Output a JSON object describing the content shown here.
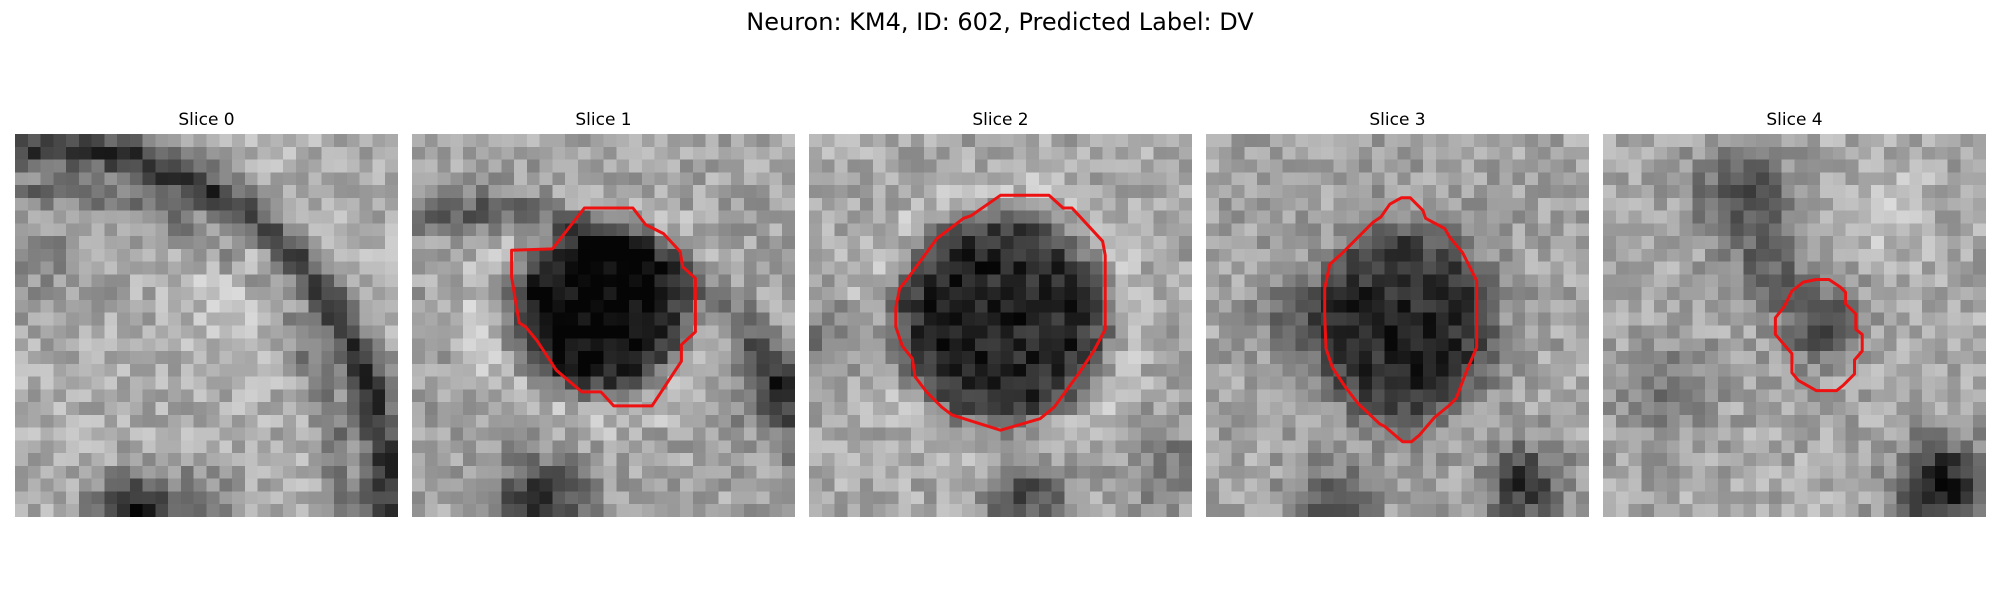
{
  "figure": {
    "title": "Neuron: KM4, ID: 602, Predicted Label: DV"
  },
  "colors": {
    "contour": "#ee1111",
    "image_colormap": "grayscale",
    "background": "#ffffff"
  },
  "panels": [
    {
      "title": "Slice 0",
      "has_contour": false
    },
    {
      "title": "Slice 1",
      "has_contour": true
    },
    {
      "title": "Slice 2",
      "has_contour": true
    },
    {
      "title": "Slice 3",
      "has_contour": true
    },
    {
      "title": "Slice 4",
      "has_contour": true
    }
  ]
}
